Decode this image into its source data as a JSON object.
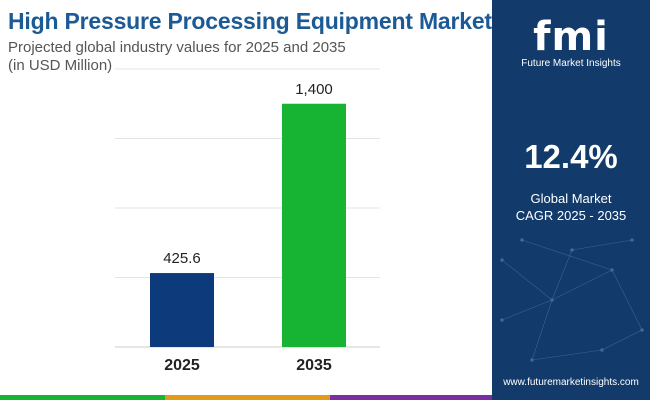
{
  "header": {
    "title": "High Pressure Processing Equipment Market",
    "subtitle_line1": "Projected global industry values for 2025 and 2035",
    "subtitle_line2": "(in USD Million)"
  },
  "brand": {
    "logo_text": "fmi",
    "logo_name": "Future Market Insights",
    "website": "www.futuremarketinsights.com"
  },
  "stat": {
    "value": "12.4%",
    "label_line1": "Global Market",
    "label_line2": "CAGR 2025 - 2035"
  },
  "colors": {
    "title": "#1c5a96",
    "panel": "#123a6b",
    "bar_2025": "#0d3a7a",
    "bar_2035": "#17b332"
  },
  "chart_data": {
    "type": "bar",
    "categories": [
      "2025",
      "2035"
    ],
    "values": [
      425.6,
      1400
    ],
    "value_labels": [
      "425.6",
      "1,400"
    ],
    "ylim": [
      0,
      1600
    ],
    "grid": true
  }
}
